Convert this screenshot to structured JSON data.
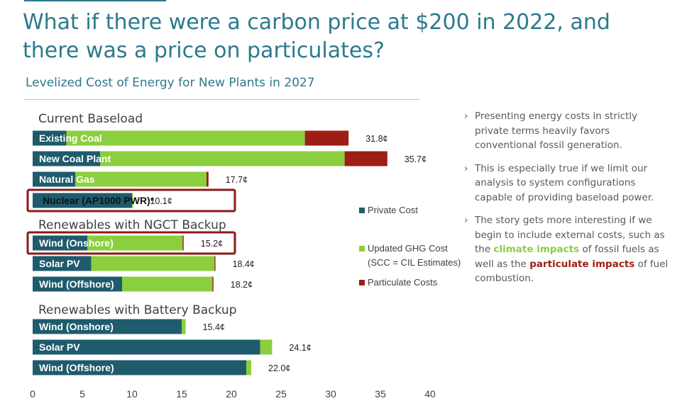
{
  "title": "What if there were a carbon price at $200 in 2022, and there was a price on particulates?",
  "subtitle": "Levelized Cost of Energy for New Plants in 2027",
  "colors": {
    "private": "#1e5b6d",
    "ghg": "#8ccf3e",
    "particulate": "#9c1e14",
    "highlight_box": "#8b1a14",
    "title": "#2b7a8c"
  },
  "chart_data": {
    "type": "bar",
    "orientation": "horizontal",
    "stacked": true,
    "xlim": [
      0,
      40
    ],
    "x_ticks": [
      "0",
      "5",
      "10",
      "15",
      "20",
      "25",
      "30",
      "35",
      "40"
    ],
    "groups": [
      {
        "name": "Current Baseload",
        "bars": [
          {
            "label": "Existing Coal",
            "private": 3.4,
            "ghg": 24.0,
            "particulate": 4.4,
            "total_label": "31.8¢",
            "highlighted": false
          },
          {
            "label": "New Coal Plant",
            "private": 6.8,
            "ghg": 24.6,
            "particulate": 4.3,
            "total_label": "35.7¢",
            "highlighted": false
          },
          {
            "label": "Natural Gas",
            "private": 4.3,
            "ghg": 13.2,
            "particulate": 0.2,
            "total_label": "17.7¢",
            "highlighted": false
          },
          {
            "label": "Nuclear (AP1000 PWR)*",
            "private": 10.0,
            "ghg": 0.1,
            "particulate": 0.0,
            "total_label": "10.1¢",
            "highlighted": true
          }
        ]
      },
      {
        "name": "Renewables with NGCT Backup",
        "bars": [
          {
            "label": "Wind (Onshore)",
            "private": 5.5,
            "ghg": 9.6,
            "particulate": 0.1,
            "total_label": "15.2¢",
            "highlighted": true
          },
          {
            "label": "Solar PV",
            "private": 5.9,
            "ghg": 12.4,
            "particulate": 0.1,
            "total_label": "18.4¢",
            "highlighted": false
          },
          {
            "label": "Wind (Offshore)",
            "private": 9.0,
            "ghg": 9.1,
            "particulate": 0.1,
            "total_label": "18.2¢",
            "highlighted": false
          }
        ]
      },
      {
        "name": "Renewables with Battery Backup",
        "bars": [
          {
            "label": "Wind (Onshore)",
            "private": 15.0,
            "ghg": 0.4,
            "particulate": 0.0,
            "total_label": "15.4¢",
            "highlighted": false
          },
          {
            "label": "Solar PV",
            "private": 22.9,
            "ghg": 1.2,
            "particulate": 0.0,
            "total_label": "24.1¢",
            "highlighted": false
          },
          {
            "label": "Wind (Offshore)",
            "private": 21.5,
            "ghg": 0.5,
            "particulate": 0.0,
            "total_label": "22.0¢",
            "highlighted": false
          }
        ]
      }
    ],
    "legend": {
      "placement": "right",
      "items": [
        {
          "key": "private",
          "line1": "Private Cost",
          "line2": ""
        },
        {
          "key": "ghg",
          "line1": "Updated GHG Cost",
          "line2": "(SCC = CIL Estimates)"
        },
        {
          "key": "particulate",
          "line1": "Particulate Costs",
          "line2": ""
        }
      ]
    }
  },
  "bullets": [
    {
      "parts": [
        {
          "text": "Presenting energy costs in strictly private terms heavily favors conventional fossil generation.",
          "style": ""
        }
      ]
    },
    {
      "parts": [
        {
          "text": "This is especially true if we limit our analysis to system configurations capable of providing baseload power.",
          "style": ""
        }
      ]
    },
    {
      "parts": [
        {
          "text": "The story gets more interesting if we begin to include external costs, such as the ",
          "style": ""
        },
        {
          "text": "climate impacts",
          "style": "green"
        },
        {
          "text": " of fossil fuels as well as the ",
          "style": ""
        },
        {
          "text": "particulate impacts",
          "style": "red"
        },
        {
          "text": " of fuel combustion.",
          "style": ""
        }
      ]
    }
  ],
  "bullet_mark": "›"
}
